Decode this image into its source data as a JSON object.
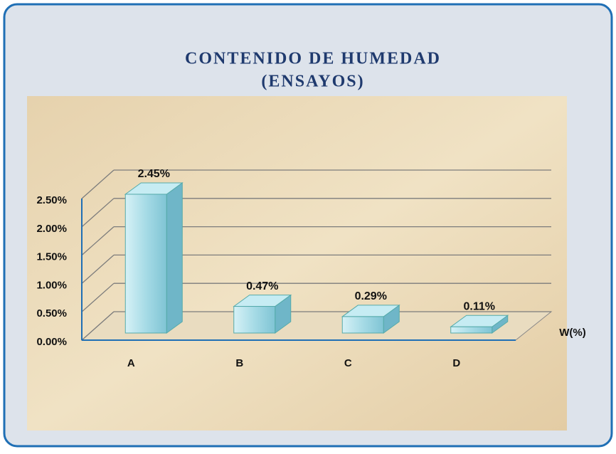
{
  "chart_data": {
    "type": "bar3d",
    "title": [
      "CONTENIDO DE HUMEDAD",
      "(ENSAYOS)"
    ],
    "categories": [
      "A",
      "B",
      "C",
      "D"
    ],
    "series": [
      {
        "name": "W(%)",
        "color": "#a9dbe6",
        "values": [
          2.45,
          0.47,
          0.29,
          0.11
        ],
        "value_labels": [
          "2.45%",
          "0.47%",
          "0.29%",
          "0.11%"
        ]
      }
    ],
    "ylim": [
      0,
      2.5
    ],
    "yticks": [
      {
        "value": 0,
        "label": "0.00%"
      },
      {
        "value": 0.5,
        "label": "0.50%"
      },
      {
        "value": 1,
        "label": "1.00%"
      },
      {
        "value": 1.5,
        "label": "1.50%"
      },
      {
        "value": 2,
        "label": "2.00%"
      },
      {
        "value": 2.5,
        "label": "2.50%"
      }
    ],
    "grid": true,
    "legend": "right"
  }
}
